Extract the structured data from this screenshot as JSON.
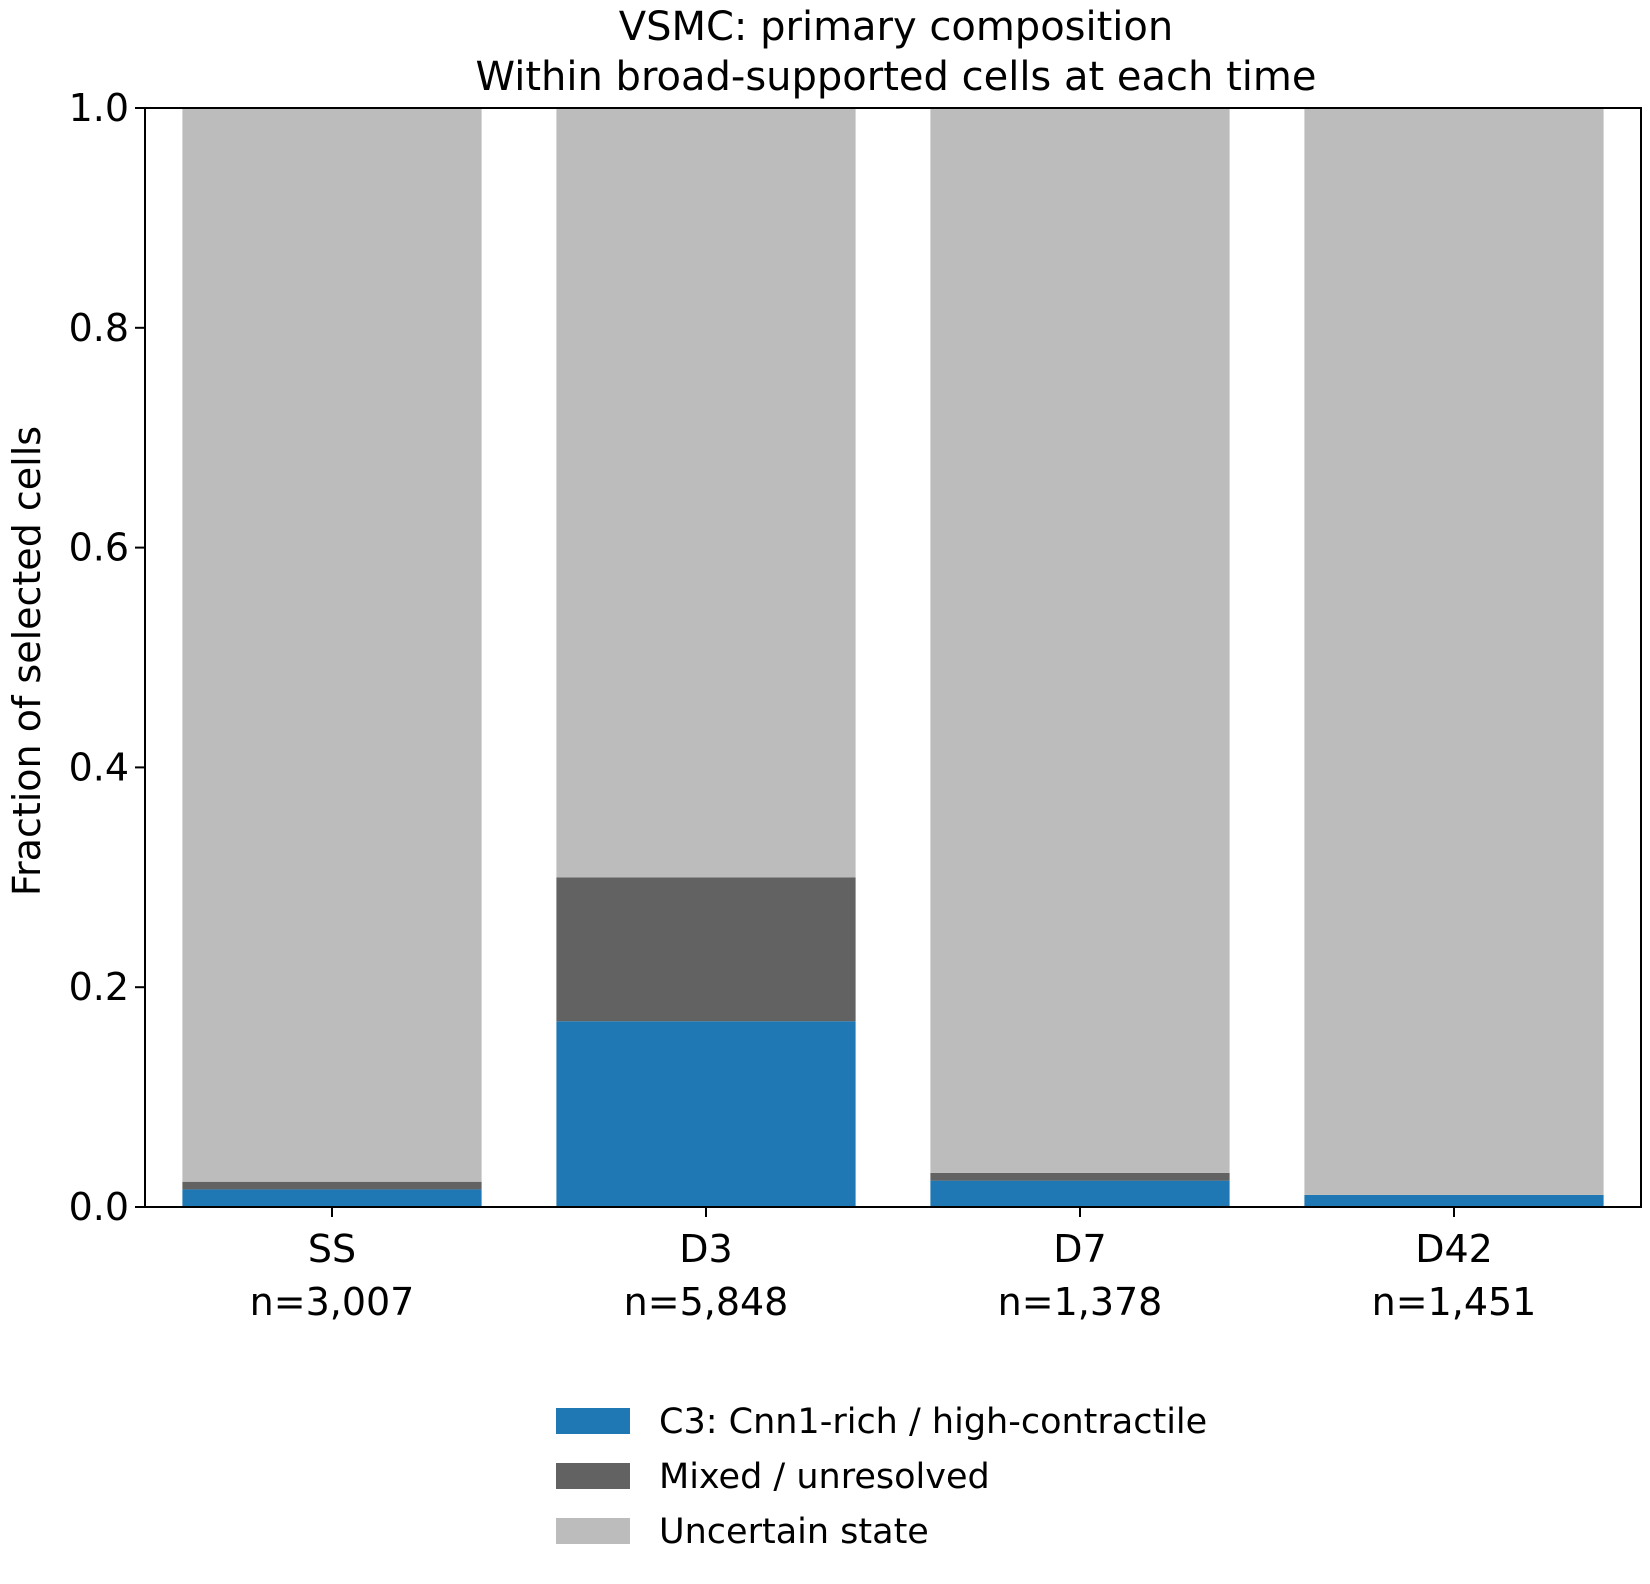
{
  "chart_data": {
    "type": "bar",
    "stacked": true,
    "title": "VSMC: primary composition",
    "subtitle": "Within broad-supported cells at each time",
    "xlabel": "",
    "ylabel": "Fraction of selected cells",
    "ylim": [
      0,
      1.0
    ],
    "yticks": [
      "0.0",
      "0.2",
      "0.4",
      "0.6",
      "0.8",
      "1.0"
    ],
    "grid": false,
    "legend_position": "bottom-center",
    "categories": [
      "SS",
      "D3",
      "D7",
      "D42"
    ],
    "category_counts": [
      "n=3,007",
      "n=5,848",
      "n=1,378",
      "n=1,451"
    ],
    "series": [
      {
        "name": "C3: Cnn1-rich / high-contractile",
        "color": "#1f77b4",
        "values": [
          0.016,
          0.169,
          0.024,
          0.011
        ]
      },
      {
        "name": "Mixed / unresolved",
        "color": "#626262",
        "values": [
          0.007,
          0.131,
          0.007,
          0.0
        ]
      },
      {
        "name": "Uncertain state",
        "color": "#bcbcbc",
        "values": [
          0.977,
          0.7,
          0.969,
          0.989
        ]
      }
    ]
  }
}
